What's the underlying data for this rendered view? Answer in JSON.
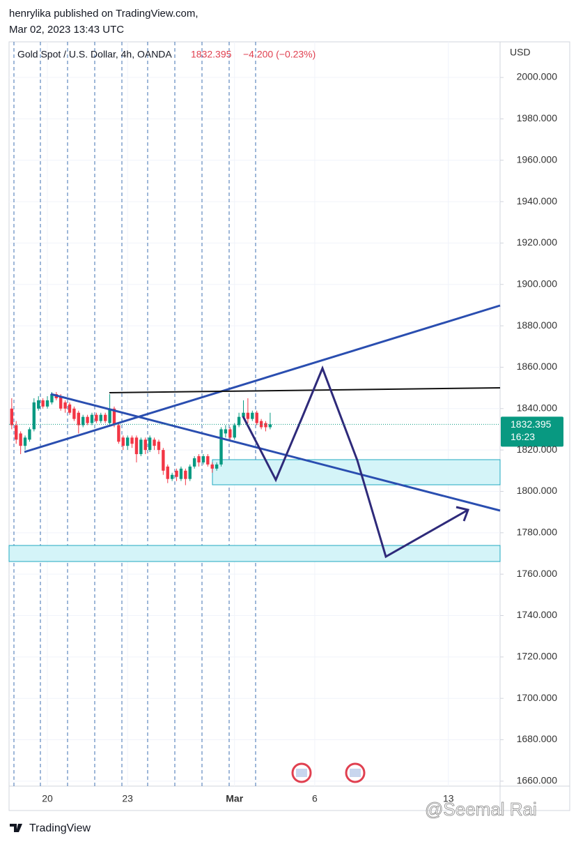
{
  "header": {
    "author_line": "henrylika published on TradingView.com,",
    "date_line": "Mar 02, 2023 13:43 UTC"
  },
  "chart_data": {
    "type": "candlestick",
    "title": "Gold Spot / U.S. Dollar, 4h, OANDA",
    "change_label": "−4.200 (−0.23%)",
    "countdown": "16:23",
    "currency": "USD",
    "up_color": "#089981",
    "down_color": "#f23645",
    "grid": true,
    "open": [
      1840,
      1832,
      1828,
      1822,
      1825,
      1830,
      1840,
      1844,
      1841,
      1843,
      1847,
      1846,
      1843,
      1842,
      1840,
      1838,
      1832,
      1836,
      1833,
      1837,
      1834,
      1837,
      1833,
      1840,
      1832,
      1826,
      1822,
      1826,
      1826,
      1818,
      1825,
      1820,
      1825,
      1824,
      1820,
      1812,
      1806,
      1810,
      1806,
      1810,
      1806,
      1812,
      1817,
      1814,
      1817,
      1813,
      1811,
      1813,
      1828,
      1830,
      1826,
      1832,
      1836,
      1838,
      1835,
      1838,
      1834,
      1833,
      1831
    ],
    "high": [
      1845,
      1834,
      1829,
      1827,
      1831,
      1845,
      1846,
      1845,
      1846,
      1848,
      1848,
      1847,
      1844,
      1843,
      1841,
      1839,
      1837,
      1837,
      1838,
      1838,
      1838,
      1838,
      1847,
      1841,
      1833,
      1827,
      1827,
      1827,
      1827,
      1826,
      1826,
      1827,
      1826,
      1825,
      1821,
      1813,
      1809,
      1811,
      1812,
      1811,
      1813,
      1817,
      1818,
      1818,
      1818,
      1814,
      1814,
      1831,
      1832,
      1831,
      1833,
      1838,
      1844,
      1845,
      1839,
      1839,
      1835,
      1834,
      1838
    ],
    "low": [
      1830,
      1823,
      1818,
      1820,
      1824,
      1829,
      1839,
      1840,
      1840,
      1842,
      1844,
      1839,
      1838,
      1837,
      1834,
      1828,
      1831,
      1832,
      1832,
      1833,
      1833,
      1833,
      1832,
      1831,
      1823,
      1820,
      1820,
      1821,
      1814,
      1817,
      1818,
      1819,
      1820,
      1818,
      1808,
      1804,
      1805,
      1805,
      1805,
      1803,
      1805,
      1811,
      1812,
      1813,
      1812,
      1809,
      1810,
      1812,
      1826,
      1824,
      1825,
      1831,
      1835,
      1833,
      1834,
      1832,
      1830,
      1829,
      1830
    ],
    "close": [
      1832,
      1825,
      1822,
      1826,
      1830,
      1843,
      1844,
      1841,
      1844,
      1847,
      1845,
      1840,
      1840,
      1838,
      1835,
      1832,
      1836,
      1833,
      1837,
      1834,
      1837,
      1834,
      1840,
      1832,
      1824,
      1822,
      1826,
      1823,
      1818,
      1825,
      1820,
      1826,
      1822,
      1820,
      1810,
      1806,
      1808,
      1807,
      1811,
      1806,
      1812,
      1816,
      1814,
      1817,
      1813,
      1811,
      1813,
      1830,
      1830,
      1826,
      1832,
      1836,
      1838,
      1835,
      1838,
      1833,
      1831,
      1831,
      1832.395
    ],
    "xlim": [
      -0.6,
      109.6
    ],
    "xticks": [
      {
        "value": 8,
        "label": "20"
      },
      {
        "value": 26,
        "label": "23"
      },
      {
        "value": 50,
        "label": "Mar"
      },
      {
        "value": 68,
        "label": "6"
      },
      {
        "value": 98,
        "label": "13"
      }
    ],
    "ylim": [
      1657.6,
      2017.2
    ],
    "yticks": [
      {
        "value": 1660,
        "label": "1660.000"
      },
      {
        "value": 1680,
        "label": "1680.000"
      },
      {
        "value": 1700,
        "label": "1700.000"
      },
      {
        "value": 1720,
        "label": "1720.000"
      },
      {
        "value": 1740,
        "label": "1740.000"
      },
      {
        "value": 1760,
        "label": "1760.000"
      },
      {
        "value": 1780,
        "label": "1780.000"
      },
      {
        "value": 1800,
        "label": "1800.000"
      },
      {
        "value": 1820,
        "label": "1820.000"
      },
      {
        "value": 1840,
        "label": "1840.000"
      },
      {
        "value": 1860,
        "label": "1860.000"
      },
      {
        "value": 1880,
        "label": "1880.000"
      },
      {
        "value": 1900,
        "label": "1900.000"
      },
      {
        "value": 1920,
        "label": "1920.000"
      },
      {
        "value": 1940,
        "label": "1940.000"
      },
      {
        "value": 1960,
        "label": "1960.000"
      },
      {
        "value": 1980,
        "label": "1980.000"
      },
      {
        "value": 2000,
        "label": "2000.000"
      }
    ]
  },
  "footer": {
    "brand": "TradingView",
    "watermark": "@Seemal Rai"
  }
}
